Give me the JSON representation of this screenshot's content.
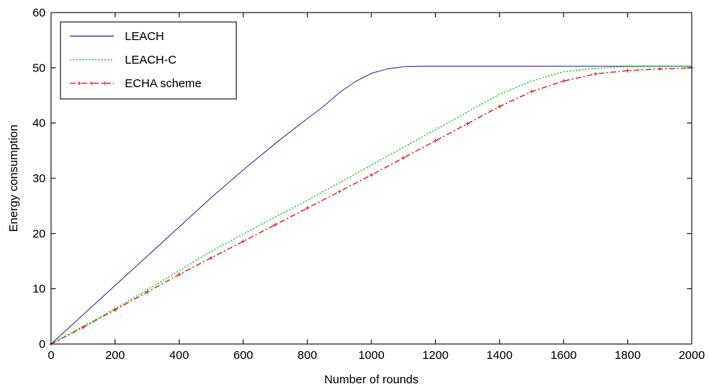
{
  "chart_data": {
    "type": "line",
    "title": "",
    "xlabel": "Number of rounds",
    "ylabel": "Energy consumption",
    "xlim": [
      0,
      2000
    ],
    "ylim": [
      0,
      60
    ],
    "xticks": [
      0,
      200,
      400,
      600,
      800,
      1000,
      1200,
      1400,
      1600,
      1800,
      2000
    ],
    "yticks": [
      0,
      10,
      20,
      30,
      40,
      50,
      60
    ],
    "grid": false,
    "legend_position": "top-left",
    "series": [
      {
        "name": "LEACH",
        "color": "#3333aa",
        "style": "solid",
        "x": [
          0,
          100,
          200,
          300,
          400,
          500,
          600,
          700,
          800,
          850,
          900,
          950,
          1000,
          1050,
          1100,
          1150,
          1200,
          1400,
          1600,
          1800,
          2000
        ],
        "y": [
          0,
          5.3,
          10.6,
          15.9,
          21.2,
          26.5,
          31.5,
          36.3,
          40.8,
          43.0,
          45.5,
          47.5,
          49.0,
          49.8,
          50.2,
          50.3,
          50.3,
          50.3,
          50.3,
          50.3,
          50.3
        ]
      },
      {
        "name": "LEACH-C",
        "color": "#22cc22",
        "style": "dotted",
        "x": [
          0,
          100,
          200,
          300,
          400,
          500,
          600,
          700,
          800,
          900,
          1000,
          1100,
          1200,
          1300,
          1400,
          1500,
          1600,
          1700,
          1750,
          1800,
          1900,
          2000
        ],
        "y": [
          0,
          3.2,
          6.4,
          9.8,
          13.3,
          16.8,
          19.9,
          23.0,
          26.0,
          29.2,
          32.4,
          35.6,
          38.8,
          42.0,
          45.2,
          47.6,
          49.3,
          49.9,
          50.1,
          50.2,
          50.3,
          50.3
        ]
      },
      {
        "name": "ECHA scheme",
        "color": "#dd2222",
        "style": "dashdot",
        "x": [
          0,
          100,
          200,
          300,
          400,
          500,
          600,
          700,
          800,
          900,
          1000,
          1100,
          1200,
          1300,
          1400,
          1500,
          1600,
          1700,
          1800,
          1900,
          2000
        ],
        "y": [
          0,
          3.0,
          6.2,
          9.4,
          12.6,
          15.6,
          18.6,
          21.6,
          24.6,
          27.6,
          30.6,
          33.7,
          36.8,
          39.9,
          43.0,
          45.7,
          47.6,
          48.9,
          49.5,
          49.8,
          50.0
        ]
      }
    ]
  }
}
